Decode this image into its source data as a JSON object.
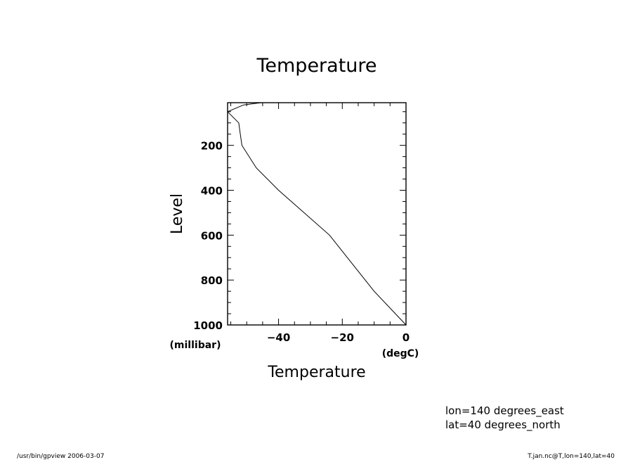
{
  "chart_data": {
    "type": "line",
    "title": "Temperature",
    "xlabel": "Temperature",
    "ylabel": "Level",
    "x_unit": "(degC)",
    "y_unit": "(millibar)",
    "xlim": [
      -56,
      0
    ],
    "ylim": [
      1000,
      10
    ],
    "y_inverted": true,
    "xticks": [
      -40,
      -20,
      0
    ],
    "yticks": [
      200,
      400,
      600,
      800,
      1000
    ],
    "grid": false,
    "series": [
      {
        "x": [
          -45.5,
          -51,
          -56,
          -52.5,
          -52,
          -51.5,
          -47,
          -40,
          -24,
          -10,
          0
        ],
        "y": [
          10,
          20,
          50,
          100,
          150,
          200,
          300,
          400,
          600,
          850,
          1000
        ]
      }
    ]
  },
  "annotations": {
    "lon": "lon=140 degrees_east",
    "lat": "lat=40 degrees_north"
  },
  "footer": {
    "left": "/usr/bin/gpview   2006-03-07",
    "right": "T.jan.nc@T,lon=140,lat=40"
  }
}
